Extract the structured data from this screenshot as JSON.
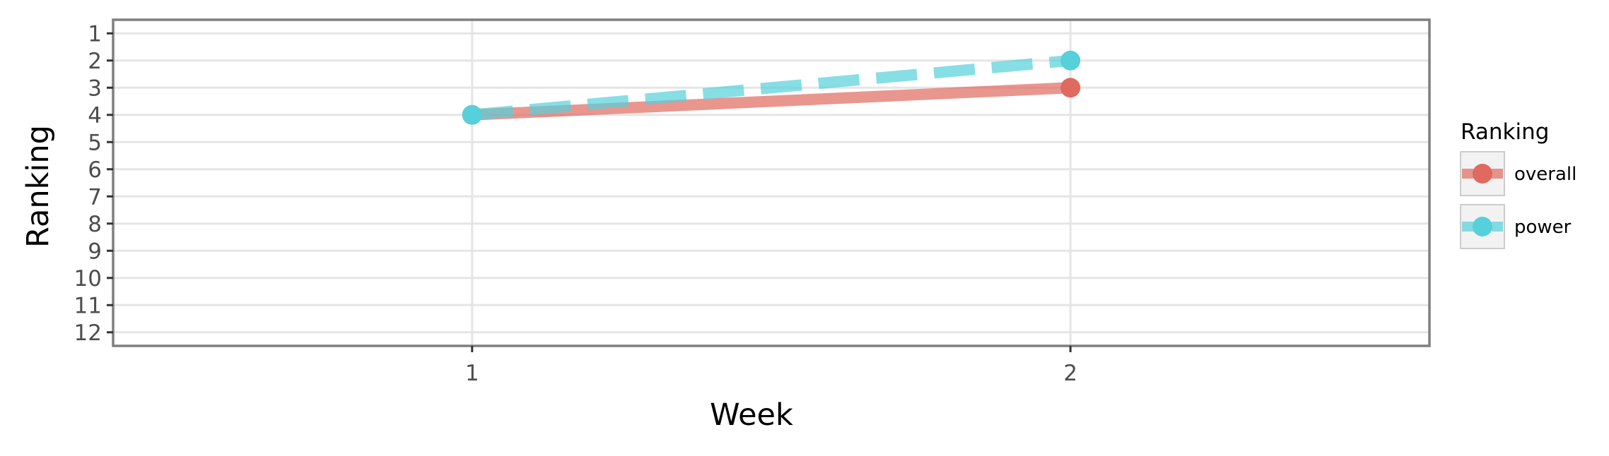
{
  "chart_data": {
    "type": "line",
    "title": "",
    "xlabel": "Week",
    "ylabel": "Ranking",
    "x": [
      1,
      2
    ],
    "xlim": [
      0.4,
      2.6
    ],
    "ylim": [
      12.5,
      0.5
    ],
    "y_reversed": true,
    "x_ticks": [
      1,
      2
    ],
    "y_ticks": [
      1,
      2,
      3,
      4,
      5,
      6,
      7,
      8,
      9,
      10,
      11,
      12
    ],
    "grid": true,
    "legend": {
      "title": "Ranking",
      "position": "right"
    },
    "series": [
      {
        "name": "overall",
        "values": [
          4,
          3
        ],
        "color": "#E06A5F",
        "line_style": "solid"
      },
      {
        "name": "power",
        "values": [
          4,
          2
        ],
        "color": "#56D0DA",
        "line_style": "dashed"
      }
    ]
  }
}
